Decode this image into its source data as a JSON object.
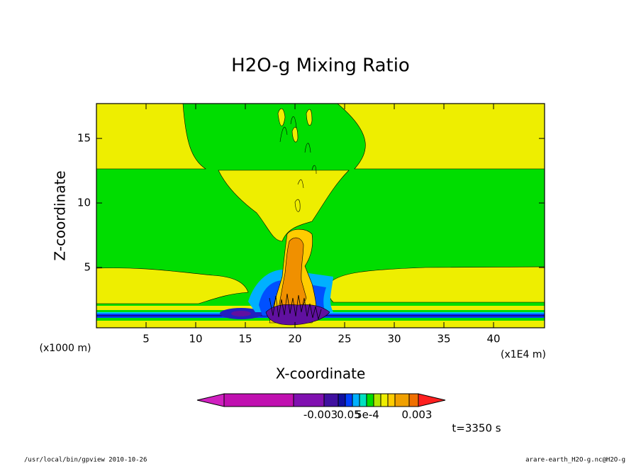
{
  "chart_data": {
    "type": "contour",
    "title": "H2O-g Mixing Ratio",
    "x_label": "X-coordinate",
    "y_label": "Z-coordinate",
    "y_unit": "(x1000 m)",
    "x_unit": "(x1E4 m)",
    "xlim": [
      0,
      45.14
    ],
    "ylim": [
      0.33,
      17.7
    ],
    "xticks": [
      5,
      10,
      15,
      20,
      25,
      30,
      35,
      40
    ],
    "yticks": [
      5,
      10,
      15
    ],
    "colorbar_labels": [
      "-0.003",
      "0.05",
      "5e-4",
      "0.003"
    ],
    "time_label": "t=3350 s",
    "footer_left": "/usr/local/bin/gpview  2010-10-26",
    "footer_right": "arare-earth_H2O-g.nc@H2O-g"
  }
}
